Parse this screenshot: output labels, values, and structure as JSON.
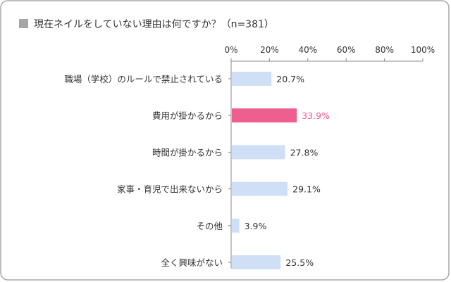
{
  "chart_data": {
    "type": "bar",
    "orientation": "horizontal",
    "title": "現在ネイルをしていない理由は何ですか？（n=381）",
    "categories": [
      "職場（学校）のルールで禁止されている",
      "費用が掛かるから",
      "時間が掛かるから",
      "家事・育児で出来ないから",
      "その他",
      "全く興味がない"
    ],
    "values": [
      20.7,
      33.9,
      27.8,
      29.1,
      3.9,
      25.5
    ],
    "value_labels": [
      "20.7%",
      "33.9%",
      "27.8%",
      "29.1%",
      "3.9%",
      "25.5%"
    ],
    "highlight_index": 1,
    "xlim": [
      0,
      100
    ],
    "xticks": [
      0,
      20,
      40,
      60,
      80,
      100
    ],
    "xtick_labels": [
      "0%",
      "20%",
      "40%",
      "60%",
      "80%",
      "100%"
    ],
    "axis_position": "top",
    "grid": false,
    "colors": {
      "bar": "#cfe0f6",
      "bar_highlight": "#ee5f8f",
      "label_highlight": "#ee5f8f",
      "title_square": "#a6a6a6"
    }
  }
}
